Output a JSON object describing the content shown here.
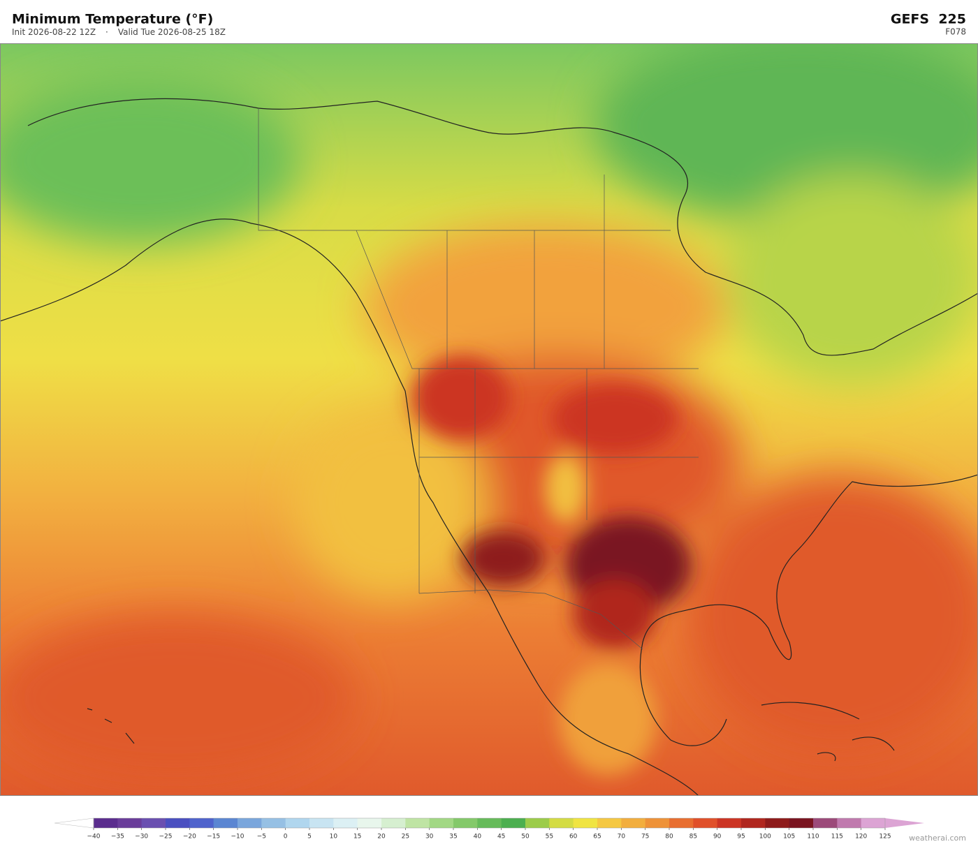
{
  "header": {
    "title": "Minimum Temperature  (°F)",
    "init": "Init 2026-08-22 12Z",
    "separator": "·",
    "valid": "Valid Tue 2026-08-25 18Z",
    "model": "GEFS  225",
    "forecast_hour": "F078"
  },
  "colorbar": {
    "range": [
      -40,
      125
    ],
    "ticks": [
      {
        "value": -40,
        "label": "−40"
      },
      {
        "value": -35,
        "label": "−35"
      },
      {
        "value": -30,
        "label": "−30"
      },
      {
        "value": -25,
        "label": "−25"
      },
      {
        "value": -20,
        "label": "−20"
      },
      {
        "value": -15,
        "label": "−15"
      },
      {
        "value": -10,
        "label": "−10"
      },
      {
        "value": -5,
        "label": "−5"
      },
      0,
      5,
      10,
      15,
      20,
      25,
      30,
      35,
      40,
      45,
      50,
      55,
      60,
      65,
      70,
      75,
      80,
      85,
      90,
      95,
      100,
      105,
      110,
      115,
      120,
      125
    ],
    "colors": [
      "#5b2d8e",
      "#6a3d9a",
      "#6a4fb0",
      "#4a4fc0",
      "#4f63cc",
      "#5b86d2",
      "#7aa6dc",
      "#96c0e4",
      "#b0d6ee",
      "#c8e4f2",
      "#dcf0f4",
      "#e8f6ec",
      "#d6efd0",
      "#bfe4a4",
      "#a2d884",
      "#84c96a",
      "#66bb5a",
      "#4caf50",
      "#9ccc4a",
      "#d4dc44",
      "#f0e442",
      "#f5c842",
      "#f2ae3e",
      "#ee9238",
      "#e86e30",
      "#e0502a",
      "#cc3424",
      "#b0261e",
      "#8e1a1a",
      "#7a1420",
      "#9c4a7a",
      "#c07aae",
      "#dca4d4"
    ],
    "under_color": "#ffffff",
    "over_color": "#dca4d4"
  },
  "watermark": "weatherai.com"
}
